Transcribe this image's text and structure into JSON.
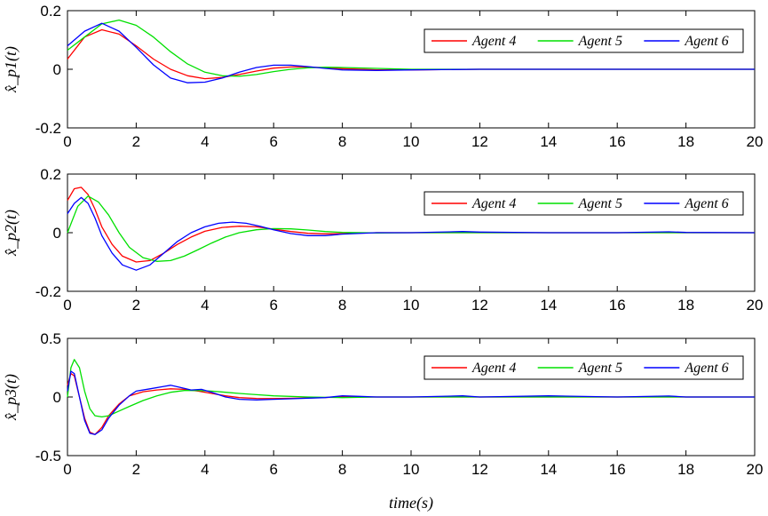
{
  "chart_data": [
    {
      "type": "line",
      "ylabel": "x̂_p1(t)",
      "xlim": [
        0,
        20
      ],
      "ylim": [
        -0.2,
        0.2
      ],
      "x_ticks": [
        "0",
        "2",
        "4",
        "6",
        "8",
        "10",
        "12",
        "14",
        "16",
        "18",
        "20"
      ],
      "y_ticks": [
        "-0.2",
        "0",
        "0.2"
      ],
      "legend_position": "top-right",
      "series": [
        {
          "name": "Agent 4",
          "color": "#ff0000",
          "x": [
            0,
            0.5,
            1.0,
            1.5,
            2.0,
            2.5,
            3.0,
            3.5,
            4.0,
            4.5,
            5.0,
            5.5,
            6.0,
            6.5,
            7.0,
            7.5,
            8.0,
            9.0,
            10.0,
            12.0,
            14.0,
            16.0,
            18.0,
            20.0
          ],
          "y": [
            0.035,
            0.11,
            0.135,
            0.12,
            0.08,
            0.035,
            0.0,
            -0.022,
            -0.032,
            -0.028,
            -0.018,
            -0.006,
            0.004,
            0.008,
            0.008,
            0.005,
            0.002,
            -0.002,
            -0.002,
            0.0,
            0.0,
            0.0,
            0.0,
            0.0
          ]
        },
        {
          "name": "Agent 5",
          "color": "#00e000",
          "x": [
            0,
            0.5,
            1.0,
            1.5,
            2.0,
            2.5,
            3.0,
            3.5,
            4.0,
            4.5,
            5.0,
            5.5,
            6.0,
            6.5,
            7.0,
            7.5,
            8.0,
            9.0,
            10.0,
            12.0,
            14.0,
            16.0,
            18.0,
            20.0
          ],
          "y": [
            0.065,
            0.11,
            0.155,
            0.168,
            0.15,
            0.11,
            0.06,
            0.018,
            -0.01,
            -0.022,
            -0.024,
            -0.018,
            -0.008,
            0.0,
            0.005,
            0.007,
            0.006,
            0.003,
            0.0,
            0.0,
            0.0,
            0.0,
            0.0,
            0.0
          ]
        },
        {
          "name": "Agent 6",
          "color": "#0000ff",
          "x": [
            0,
            0.5,
            1.0,
            1.5,
            2.0,
            2.5,
            3.0,
            3.5,
            4.0,
            4.5,
            5.0,
            5.5,
            6.0,
            6.5,
            7.0,
            7.5,
            8.0,
            9.0,
            10.0,
            12.0,
            14.0,
            16.0,
            18.0,
            20.0
          ],
          "y": [
            0.08,
            0.13,
            0.157,
            0.13,
            0.075,
            0.015,
            -0.03,
            -0.046,
            -0.044,
            -0.03,
            -0.01,
            0.006,
            0.014,
            0.014,
            0.009,
            0.003,
            -0.002,
            -0.004,
            -0.002,
            0.0,
            0.0,
            0.0,
            0.0,
            0.0
          ]
        }
      ]
    },
    {
      "type": "line",
      "ylabel": "x̂_p2(t)",
      "xlim": [
        0,
        20
      ],
      "ylim": [
        -0.2,
        0.2
      ],
      "x_ticks": [
        "0",
        "2",
        "4",
        "6",
        "8",
        "10",
        "12",
        "14",
        "16",
        "18",
        "20"
      ],
      "y_ticks": [
        "-0.2",
        "0",
        "0.2"
      ],
      "legend_position": "top-right",
      "series": [
        {
          "name": "Agent 4",
          "color": "#ff0000",
          "x": [
            0,
            0.2,
            0.4,
            0.6,
            0.8,
            1.0,
            1.3,
            1.6,
            2.0,
            2.4,
            2.8,
            3.2,
            3.6,
            4.0,
            4.5,
            5.0,
            5.5,
            6.0,
            6.5,
            7.0,
            7.5,
            8.0,
            9.0,
            10.0,
            12.0,
            14.0,
            16.0,
            18.0,
            20.0
          ],
          "y": [
            0.11,
            0.15,
            0.155,
            0.13,
            0.08,
            0.02,
            -0.04,
            -0.08,
            -0.1,
            -0.095,
            -0.07,
            -0.04,
            -0.015,
            0.005,
            0.018,
            0.022,
            0.02,
            0.012,
            0.004,
            -0.002,
            -0.004,
            -0.003,
            0.0,
            0.0,
            0.0,
            0.0,
            0.0,
            0.0,
            0.0
          ]
        },
        {
          "name": "Agent 5",
          "color": "#00e000",
          "x": [
            0,
            0.3,
            0.6,
            0.9,
            1.2,
            1.5,
            1.8,
            2.2,
            2.6,
            3.0,
            3.4,
            3.8,
            4.2,
            4.6,
            5.0,
            5.5,
            6.0,
            6.5,
            7.0,
            7.5,
            8.0,
            9.0,
            10.0,
            12.0,
            14.0,
            16.0,
            18.0,
            20.0
          ],
          "y": [
            0.0,
            0.09,
            0.125,
            0.105,
            0.06,
            0.0,
            -0.05,
            -0.085,
            -0.098,
            -0.095,
            -0.08,
            -0.058,
            -0.035,
            -0.015,
            0.0,
            0.01,
            0.014,
            0.013,
            0.009,
            0.004,
            0.001,
            -0.001,
            0.0,
            0.0,
            0.0,
            0.0,
            0.0,
            0.0
          ]
        },
        {
          "name": "Agent 6",
          "color": "#0000ff",
          "x": [
            0,
            0.2,
            0.4,
            0.6,
            0.8,
            1.0,
            1.3,
            1.6,
            2.0,
            2.4,
            2.8,
            3.2,
            3.6,
            4.0,
            4.4,
            4.8,
            5.2,
            5.6,
            6.0,
            6.5,
            7.0,
            7.5,
            8.0,
            9.0,
            10.0,
            11.5,
            12.0,
            14.0,
            16.0,
            17.5,
            18.0,
            20.0
          ],
          "y": [
            0.065,
            0.1,
            0.12,
            0.1,
            0.05,
            -0.01,
            -0.07,
            -0.11,
            -0.128,
            -0.11,
            -0.07,
            -0.03,
            0.0,
            0.02,
            0.032,
            0.036,
            0.032,
            0.022,
            0.01,
            -0.003,
            -0.01,
            -0.01,
            -0.005,
            0.0,
            0.0,
            0.004,
            0.002,
            0.0,
            0.0,
            0.003,
            0.001,
            0.0
          ]
        }
      ]
    },
    {
      "type": "line",
      "ylabel": "x̂_p3(t)",
      "xlabel": "time(s)",
      "xlim": [
        0,
        20
      ],
      "ylim": [
        -0.5,
        0.5
      ],
      "x_ticks": [
        "0",
        "2",
        "4",
        "6",
        "8",
        "10",
        "12",
        "14",
        "16",
        "18",
        "20"
      ],
      "y_ticks": [
        "-0.5",
        "0",
        "0.5"
      ],
      "legend_position": "top-right",
      "series": [
        {
          "name": "Agent 4",
          "color": "#ff0000",
          "x": [
            0,
            0.1,
            0.2,
            0.35,
            0.5,
            0.65,
            0.8,
            1.0,
            1.2,
            1.5,
            1.8,
            2.2,
            2.6,
            3.0,
            3.4,
            3.8,
            4.2,
            4.6,
            5.0,
            5.5,
            6.0,
            7.0,
            8.0,
            9.0,
            10.0,
            12.0,
            14.0,
            16.0,
            18.0,
            20.0
          ],
          "y": [
            0.1,
            0.2,
            0.18,
            0.0,
            -0.18,
            -0.3,
            -0.32,
            -0.26,
            -0.16,
            -0.06,
            0.01,
            0.045,
            0.06,
            0.07,
            0.065,
            0.05,
            0.03,
            0.01,
            -0.005,
            -0.012,
            -0.014,
            -0.008,
            0.0,
            0.0,
            0.0,
            0.0,
            0.0,
            0.0,
            0.0,
            0.0
          ]
        },
        {
          "name": "Agent 5",
          "color": "#00e000",
          "x": [
            0,
            0.1,
            0.2,
            0.35,
            0.5,
            0.65,
            0.8,
            1.0,
            1.2,
            1.5,
            1.8,
            2.2,
            2.6,
            3.0,
            3.4,
            3.8,
            4.2,
            4.6,
            5.0,
            5.5,
            6.0,
            7.0,
            8.0,
            9.0,
            10.0,
            12.0,
            14.0,
            16.0,
            18.0,
            20.0
          ],
          "y": [
            0.0,
            0.25,
            0.32,
            0.25,
            0.05,
            -0.1,
            -0.16,
            -0.17,
            -0.16,
            -0.12,
            -0.08,
            -0.03,
            0.01,
            0.04,
            0.055,
            0.055,
            0.05,
            0.04,
            0.03,
            0.02,
            0.01,
            0.0,
            -0.005,
            0.0,
            0.0,
            0.0,
            0.0,
            0.0,
            0.0,
            0.0
          ]
        },
        {
          "name": "Agent 6",
          "color": "#0000ff",
          "x": [
            0,
            0.1,
            0.2,
            0.35,
            0.5,
            0.65,
            0.8,
            1.0,
            1.2,
            1.5,
            1.8,
            2.0,
            2.4,
            2.8,
            3.0,
            3.3,
            3.6,
            3.9,
            4.2,
            4.6,
            5.0,
            5.5,
            6.0,
            6.5,
            7.0,
            7.5,
            8.0,
            8.5,
            9.0,
            10.0,
            11.5,
            12.0,
            14.0,
            16.0,
            17.5,
            18.0,
            20.0
          ],
          "y": [
            0.05,
            0.22,
            0.2,
            0.0,
            -0.2,
            -0.31,
            -0.32,
            -0.28,
            -0.18,
            -0.07,
            0.01,
            0.05,
            0.07,
            0.09,
            0.1,
            0.08,
            0.06,
            0.065,
            0.04,
            0.0,
            -0.02,
            -0.025,
            -0.02,
            -0.015,
            -0.01,
            -0.005,
            0.01,
            0.005,
            0.0,
            0.0,
            0.01,
            0.0,
            0.01,
            0.0,
            0.008,
            0.0,
            0.0
          ]
        }
      ]
    }
  ]
}
